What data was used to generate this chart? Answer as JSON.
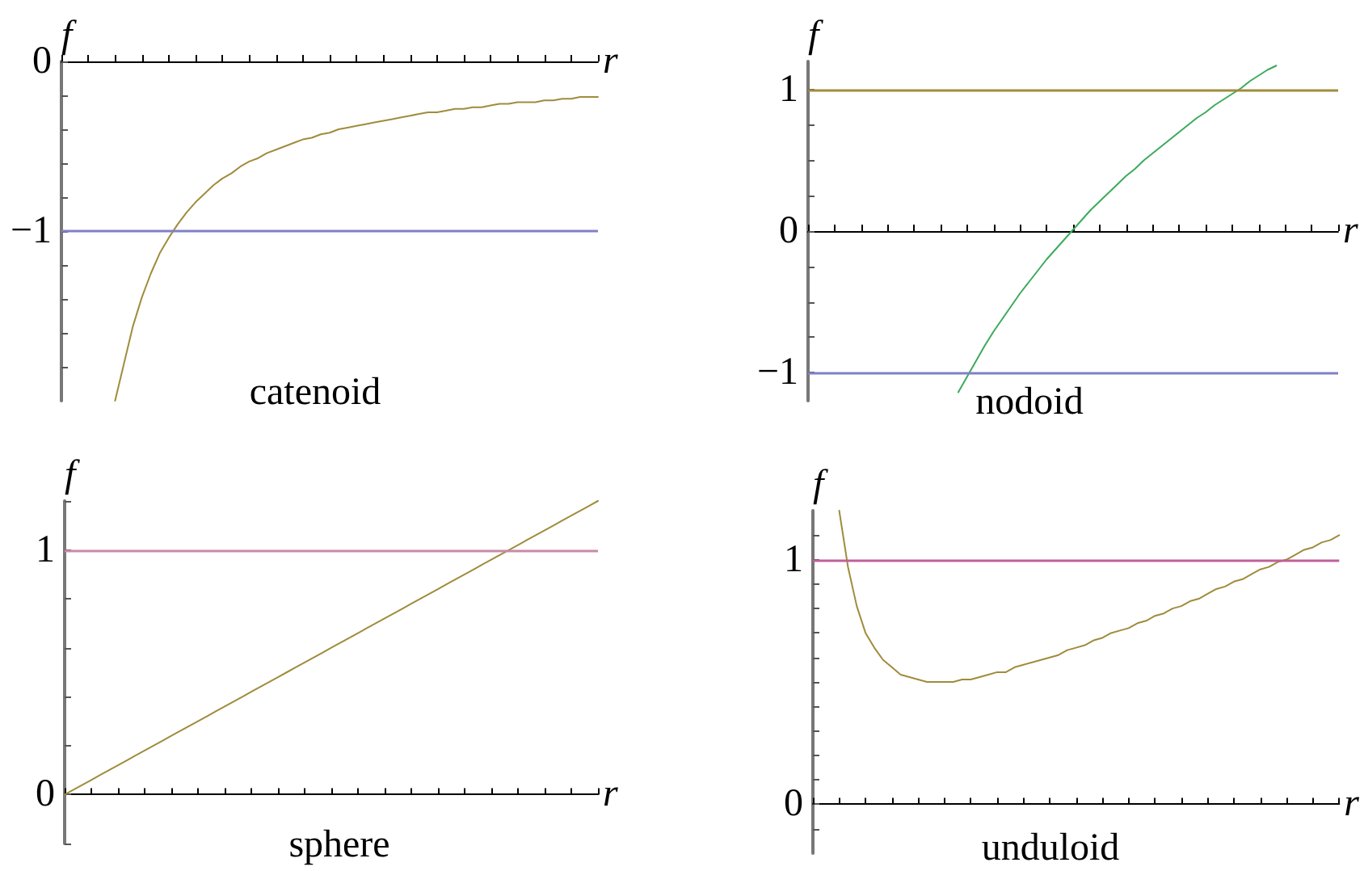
{
  "chart_data": [
    {
      "type": "line",
      "title": "catenoid",
      "xlabel": "r",
      "ylabel": "f",
      "categories": [
        null,
        null,
        null,
        null,
        null,
        null,
        null,
        null,
        null,
        null,
        null,
        null,
        null,
        null,
        null,
        null,
        null,
        null,
        null,
        null,
        null,
        null,
        null,
        null,
        null,
        null,
        null,
        null,
        null,
        null,
        null,
        null,
        null,
        null,
        null,
        null,
        null,
        null,
        null,
        null,
        null,
        null,
        null,
        null,
        null,
        null,
        null,
        null,
        null,
        null,
        null,
        null,
        null,
        null,
        null,
        null,
        null,
        null,
        null,
        null,
        null
      ],
      "series": [
        {
          "color": "#a08c3c",
          "values": [
            null,
            null,
            null,
            null,
            null,
            null,
            -2,
            -1.78,
            -1.56,
            -1.39,
            -1.25,
            -1.13,
            -1.04,
            -0.96,
            -0.89,
            -0.83,
            -0.78,
            -0.73,
            -0.69,
            -0.66,
            -0.62,
            -0.59,
            -0.57,
            -0.54,
            -0.52,
            -0.5,
            -0.48,
            -0.46,
            -0.45,
            -0.43,
            -0.42,
            -0.4,
            -0.39,
            -0.38,
            -0.37,
            -0.36,
            -0.35,
            -0.34,
            -0.33,
            -0.32,
            -0.31,
            -0.3,
            -0.3,
            -0.29,
            -0.28,
            -0.28,
            -0.27,
            -0.27,
            -0.26,
            -0.25,
            -0.25,
            -0.24,
            -0.24,
            -0.24,
            -0.23,
            -0.23,
            -0.22,
            -0.22,
            -0.21,
            -0.21,
            -0.21
          ]
        }
      ],
      "ref_lines": [
        {
          "axis": "y",
          "value": -1,
          "color": "#8080c8"
        }
      ],
      "ylim": [
        -2,
        0
      ],
      "yticks": [
        {
          "value": -1.8,
          "label": null
        },
        {
          "value": -1.6,
          "label": null
        },
        {
          "value": -1.4,
          "label": null
        },
        {
          "value": -1.2,
          "label": null
        },
        {
          "value": -1,
          "label": "−1"
        },
        {
          "value": -0.8,
          "label": null
        },
        {
          "value": -0.6,
          "label": null
        },
        {
          "value": -0.4,
          "label": null
        },
        {
          "value": -0.2,
          "label": null
        },
        {
          "value": 0,
          "label": "0"
        }
      ]
    },
    {
      "type": "line",
      "title": "nodoid",
      "xlabel": "r",
      "ylabel": "f",
      "categories": [
        null,
        null,
        null,
        null,
        null,
        null,
        null,
        null,
        null,
        null,
        null,
        null,
        null,
        null,
        null,
        null,
        null,
        null,
        null,
        null,
        null,
        null,
        null,
        null,
        null,
        null,
        null,
        null,
        null,
        null,
        null,
        null,
        null,
        null,
        null,
        null,
        null,
        null,
        null,
        null,
        null,
        null,
        null,
        null,
        null,
        null,
        null,
        null,
        null,
        null,
        null,
        null,
        null,
        null,
        null,
        null,
        null,
        null,
        null,
        null,
        null
      ],
      "series": [
        {
          "color": "#3caa5c",
          "values": [
            null,
            null,
            null,
            null,
            null,
            null,
            null,
            null,
            null,
            null,
            null,
            null,
            null,
            null,
            null,
            null,
            null,
            -1.14,
            -1.03,
            -0.92,
            -0.81,
            -0.71,
            -0.62,
            -0.53,
            -0.44,
            -0.36,
            -0.28,
            -0.2,
            -0.13,
            -0.06,
            0.01,
            0.08,
            0.15,
            0.21,
            0.27,
            0.33,
            0.39,
            0.44,
            0.5,
            0.55,
            0.6,
            0.65,
            0.7,
            0.75,
            0.8,
            0.84,
            0.89,
            0.93,
            0.97,
            1.01,
            1.06,
            1.1,
            1.14,
            1.17,
            null,
            null,
            null,
            null,
            null,
            null,
            null
          ]
        }
      ],
      "ref_lines": [
        {
          "axis": "y",
          "value": 1,
          "color": "#a08c3c"
        },
        {
          "axis": "y",
          "value": -1,
          "color": "#8080c8"
        }
      ],
      "ylim": [
        -1.2,
        1.2
      ],
      "yticks": [
        {
          "value": -1,
          "label": "−1"
        },
        {
          "value": -0.75,
          "label": null
        },
        {
          "value": -0.5,
          "label": null
        },
        {
          "value": -0.25,
          "label": null
        },
        {
          "value": 0,
          "label": "0"
        },
        {
          "value": 0.25,
          "label": null
        },
        {
          "value": 0.5,
          "label": null
        },
        {
          "value": 0.75,
          "label": null
        },
        {
          "value": 1,
          "label": "1"
        }
      ]
    },
    {
      "type": "line",
      "title": "sphere",
      "xlabel": "r",
      "ylabel": "f",
      "categories": [
        null,
        null,
        null,
        null,
        null,
        null,
        null,
        null,
        null,
        null,
        null,
        null,
        null,
        null,
        null,
        null,
        null,
        null,
        null,
        null,
        null,
        null,
        null,
        null,
        null,
        null,
        null,
        null,
        null,
        null,
        null,
        null,
        null,
        null,
        null,
        null,
        null,
        null,
        null,
        null,
        null,
        null,
        null,
        null,
        null,
        null,
        null,
        null,
        null,
        null,
        null,
        null,
        null,
        null,
        null,
        null,
        null,
        null,
        null,
        null,
        null
      ],
      "series": [
        {
          "color": "#a08c3c",
          "values": [
            0,
            0.02,
            0.04,
            0.06,
            0.08,
            0.1,
            0.12,
            0.14,
            0.16,
            0.18,
            0.2,
            0.22,
            0.24,
            0.26,
            0.28,
            0.3,
            0.32,
            0.34,
            0.36,
            0.38,
            0.4,
            0.42,
            0.44,
            0.46,
            0.48,
            0.5,
            0.52,
            0.54,
            0.56,
            0.58,
            0.6,
            0.62,
            0.64,
            0.66,
            0.68,
            0.7,
            0.72,
            0.74,
            0.76,
            0.78,
            0.8,
            0.82,
            0.84,
            0.86,
            0.88,
            0.9,
            0.92,
            0.94,
            0.96,
            0.98,
            1,
            1.02,
            1.04,
            1.06,
            1.08,
            1.1,
            1.12,
            1.14,
            1.16,
            1.18,
            1.2
          ]
        }
      ],
      "ref_lines": [
        {
          "axis": "y",
          "value": 1,
          "color": "#c88aa8"
        }
      ],
      "ylim": [
        -0.2,
        1.2
      ],
      "yticks": [
        {
          "value": -0.2,
          "label": null
        },
        {
          "value": 0,
          "label": "0"
        },
        {
          "value": 0.2,
          "label": null
        },
        {
          "value": 0.4,
          "label": null
        },
        {
          "value": 0.6,
          "label": null
        },
        {
          "value": 0.8,
          "label": null
        },
        {
          "value": 1,
          "label": "1"
        },
        {
          "value": 1.2,
          "label": null
        }
      ]
    },
    {
      "type": "line",
      "title": "unduloid",
      "xlabel": "r",
      "ylabel": "f",
      "categories": [
        null,
        null,
        null,
        null,
        null,
        null,
        null,
        null,
        null,
        null,
        null,
        null,
        null,
        null,
        null,
        null,
        null,
        null,
        null,
        null,
        null,
        null,
        null,
        null,
        null,
        null,
        null,
        null,
        null,
        null,
        null,
        null,
        null,
        null,
        null,
        null,
        null,
        null,
        null,
        null,
        null,
        null,
        null,
        null,
        null,
        null,
        null,
        null,
        null,
        null,
        null,
        null,
        null,
        null,
        null,
        null,
        null,
        null,
        null,
        null,
        null
      ],
      "series": [
        {
          "color": "#a08c3c",
          "values": [
            null,
            null,
            null,
            1.2,
            0.97,
            0.81,
            0.7,
            0.64,
            0.59,
            0.56,
            0.53,
            0.52,
            0.51,
            0.5,
            0.5,
            0.5,
            0.5,
            0.51,
            0.51,
            0.52,
            0.53,
            0.54,
            0.54,
            0.56,
            0.57,
            0.58,
            0.59,
            0.6,
            0.61,
            0.63,
            0.64,
            0.65,
            0.67,
            0.68,
            0.7,
            0.71,
            0.72,
            0.74,
            0.75,
            0.77,
            0.78,
            0.8,
            0.81,
            0.83,
            0.84,
            0.86,
            0.88,
            0.89,
            0.91,
            0.92,
            0.94,
            0.96,
            0.97,
            0.99,
            1.0,
            1.02,
            1.04,
            1.05,
            1.07,
            1.08,
            1.1
          ]
        }
      ],
      "ref_lines": [
        {
          "axis": "y",
          "value": 1,
          "color": "#c0609a"
        }
      ],
      "ylim": [
        -0.2,
        1.2
      ],
      "yticks": [
        {
          "value": -0.1,
          "label": null
        },
        {
          "value": 0,
          "label": "0"
        },
        {
          "value": 0.1,
          "label": null
        },
        {
          "value": 0.2,
          "label": null
        },
        {
          "value": 0.3,
          "label": null
        },
        {
          "value": 0.4,
          "label": null
        },
        {
          "value": 0.5,
          "label": null
        },
        {
          "value": 0.6,
          "label": null
        },
        {
          "value": 0.7,
          "label": null
        },
        {
          "value": 0.8,
          "label": null
        },
        {
          "value": 0.9,
          "label": null
        },
        {
          "value": 1,
          "label": "1"
        },
        {
          "value": 1.1,
          "label": null
        }
      ]
    }
  ]
}
